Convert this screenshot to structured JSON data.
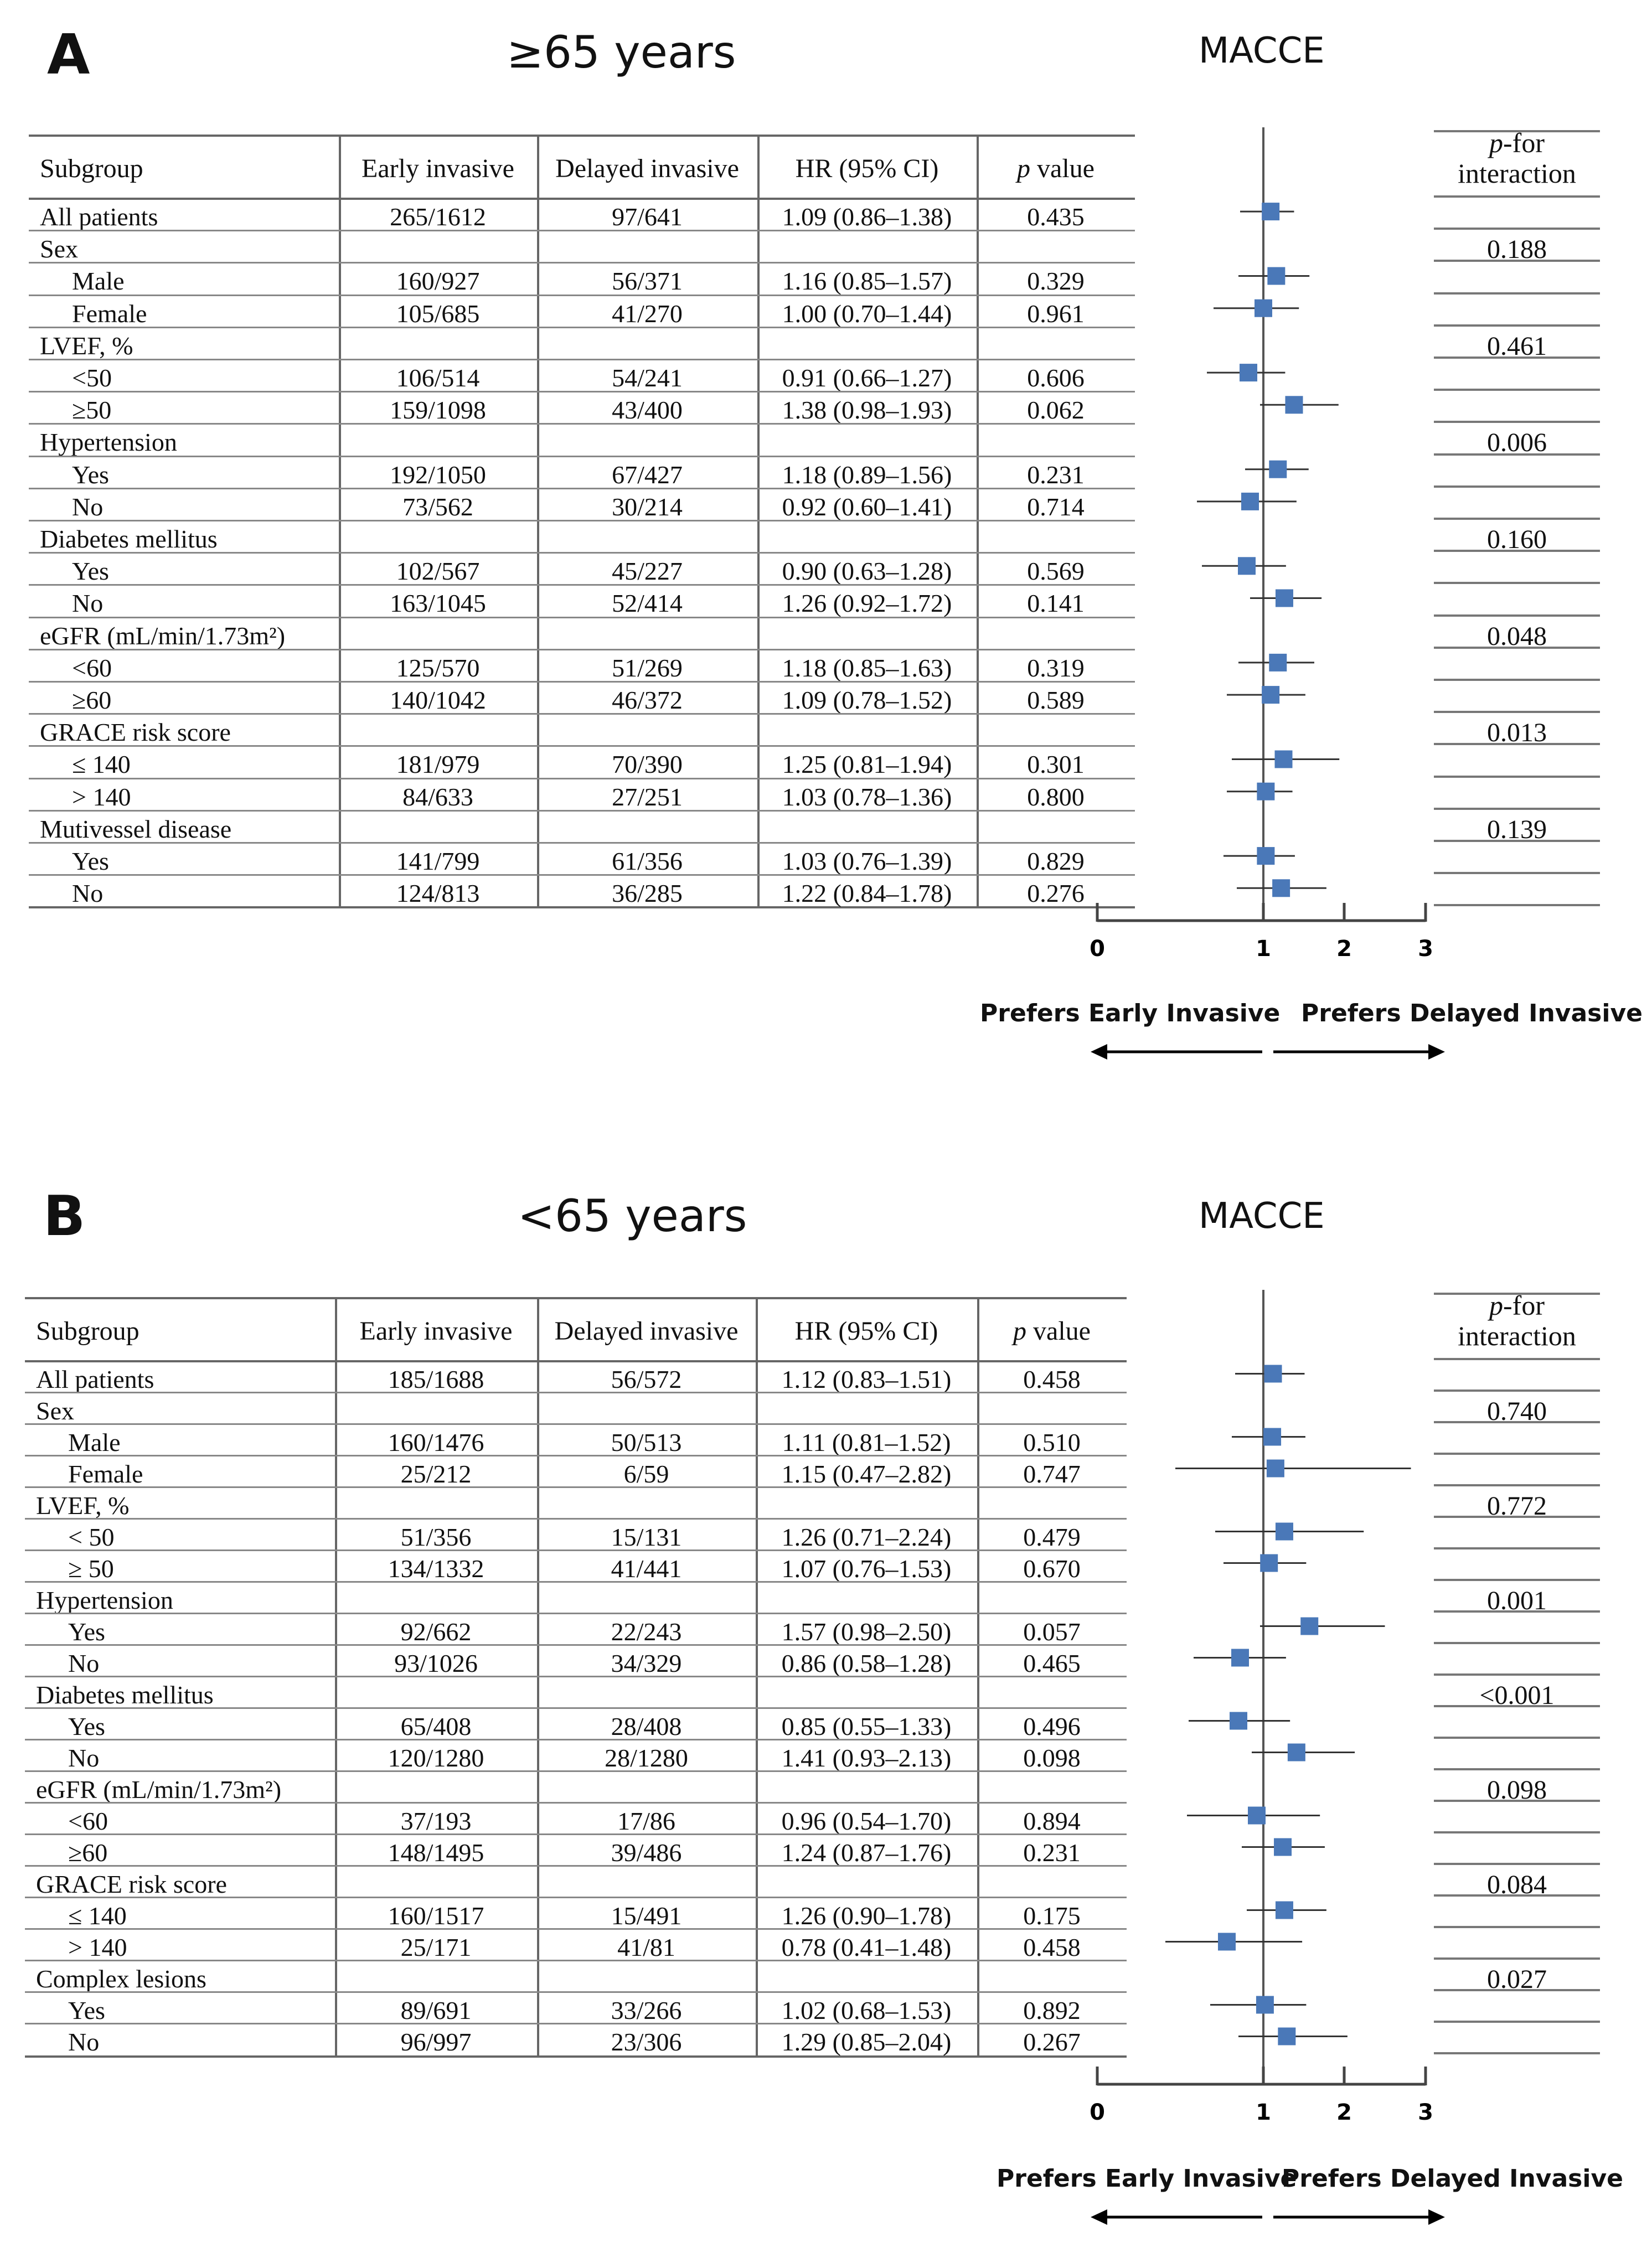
{
  "panels": [
    {
      "letter": "A",
      "title": "≥65 years",
      "outcome": "MACCE",
      "headers": {
        "subgroup": "Subgroup",
        "early": "Early invasive",
        "delayed": "Delayed invasive",
        "hr": "HR (95% CI)",
        "p_italic": "p",
        "p_rest": " value",
        "pint_italic": "p",
        "pint_rest": "-for",
        "pint_line2": "interaction"
      },
      "rows": [
        {
          "label": "All patients",
          "indent": false,
          "early": "265/1612",
          "delayed": "97/641",
          "hr": "1.09 (0.86–1.38)",
          "p": "0.435"
        },
        {
          "label": "Sex",
          "indent": false,
          "pint": "0.188"
        },
        {
          "label": "Male",
          "indent": true,
          "early": "160/927",
          "delayed": "56/371",
          "hr": "1.16 (0.85–1.57)",
          "p": "0.329"
        },
        {
          "label": "Female",
          "indent": true,
          "early": "105/685",
          "delayed": "41/270",
          "hr": "1.00 (0.70–1.44)",
          "p": "0.961"
        },
        {
          "label": "LVEF, %",
          "indent": false,
          "pint": "0.461"
        },
        {
          "label": "<50",
          "indent": true,
          "early": "106/514",
          "delayed": "54/241",
          "hr": "0.91 (0.66–1.27)",
          "p": "0.606"
        },
        {
          "label": "≥50",
          "indent": true,
          "early": "159/1098",
          "delayed": "43/400",
          "hr": "1.38 (0.98–1.93)",
          "p": "0.062"
        },
        {
          "label": "Hypertension",
          "indent": false,
          "pint": "0.006"
        },
        {
          "label": "Yes",
          "indent": true,
          "early": "192/1050",
          "delayed": "67/427",
          "hr": "1.18 (0.89–1.56)",
          "p": "0.231"
        },
        {
          "label": "No",
          "indent": true,
          "early": "73/562",
          "delayed": "30/214",
          "hr": "0.92 (0.60–1.41)",
          "p": "0.714"
        },
        {
          "label": "Diabetes mellitus",
          "indent": false,
          "pint": "0.160"
        },
        {
          "label": "Yes",
          "indent": true,
          "early": "102/567",
          "delayed": "45/227",
          "hr": "0.90 (0.63–1.28)",
          "p": "0.569"
        },
        {
          "label": "No",
          "indent": true,
          "early": "163/1045",
          "delayed": "52/414",
          "hr": "1.26 (0.92–1.72)",
          "p": "0.141"
        },
        {
          "label": "eGFR (mL/min/1.73m²)",
          "indent": false,
          "pint": "0.048"
        },
        {
          "label": "<60",
          "indent": true,
          "early": "125/570",
          "delayed": "51/269",
          "hr": "1.18 (0.85–1.63)",
          "p": "0.319"
        },
        {
          "label": "≥60",
          "indent": true,
          "early": "140/1042",
          "delayed": "46/372",
          "hr": "1.09 (0.78–1.52)",
          "p": "0.589"
        },
        {
          "label": "GRACE risk score",
          "indent": false,
          "pint": "0.013"
        },
        {
          "label": "≤ 140",
          "indent": true,
          "early": "181/979",
          "delayed": "70/390",
          "hr": "1.25 (0.81–1.94)",
          "p": "0.301"
        },
        {
          "label": "> 140",
          "indent": true,
          "early": "84/633",
          "delayed": "27/251",
          "hr": "1.03 (0.78–1.36)",
          "p": "0.800"
        },
        {
          "label": "Mutivessel disease",
          "indent": false,
          "pint": "0.139"
        },
        {
          "label": "Yes",
          "indent": true,
          "early": "141/799",
          "delayed": "61/356",
          "hr": "1.03 (0.76–1.39)",
          "p": "0.829"
        },
        {
          "label": "No",
          "indent": true,
          "early": "124/813",
          "delayed": "36/285",
          "hr": "1.22 (0.84–1.78)",
          "p": "0.276"
        }
      ],
      "axis": {
        "ticks": [
          "0",
          "1",
          "2",
          "3"
        ],
        "left_label": "Prefers Early Invasive",
        "right_label": "Prefers Delayed Invasive"
      }
    },
    {
      "letter": "B",
      "title": "<65 years",
      "outcome": "MACCE",
      "headers": {
        "subgroup": "Subgroup",
        "early": "Early invasive",
        "delayed": "Delayed invasive",
        "hr": "HR (95% CI)",
        "p_italic": "p",
        "p_rest": " value",
        "pint_italic": "p",
        "pint_rest": "-for",
        "pint_line2": "interaction"
      },
      "rows": [
        {
          "label": "All patients",
          "indent": false,
          "early": "185/1688",
          "delayed": "56/572",
          "hr": "1.12 (0.83–1.51)",
          "p": "0.458"
        },
        {
          "label": "Sex",
          "indent": false,
          "pint": "0.740"
        },
        {
          "label": "Male",
          "indent": true,
          "early": "160/1476",
          "delayed": "50/513",
          "hr": "1.11 (0.81–1.52)",
          "p": "0.510"
        },
        {
          "label": "Female",
          "indent": true,
          "early": "25/212",
          "delayed": "6/59",
          "hr": "1.15 (0.47–2.82)",
          "p": "0.747"
        },
        {
          "label": "LVEF, %",
          "indent": false,
          "pint": "0.772"
        },
        {
          "label": "< 50",
          "indent": true,
          "early": "51/356",
          "delayed": "15/131",
          "hr": "1.26 (0.71–2.24)",
          "p": "0.479"
        },
        {
          "label": "≥ 50",
          "indent": true,
          "early": "134/1332",
          "delayed": "41/441",
          "hr": "1.07 (0.76–1.53)",
          "p": "0.670"
        },
        {
          "label": "Hypertension",
          "indent": false,
          "pint": "0.001"
        },
        {
          "label": "Yes",
          "indent": true,
          "early": "92/662",
          "delayed": "22/243",
          "hr": "1.57 (0.98–2.50)",
          "p": "0.057"
        },
        {
          "label": "No",
          "indent": true,
          "early": "93/1026",
          "delayed": "34/329",
          "hr": "0.86 (0.58–1.28)",
          "p": "0.465"
        },
        {
          "label": "Diabetes mellitus",
          "indent": false,
          "pint": "<0.001"
        },
        {
          "label": "Yes",
          "indent": true,
          "early": "65/408",
          "delayed": "28/408",
          "hr": "0.85 (0.55–1.33)",
          "p": "0.496"
        },
        {
          "label": "No",
          "indent": true,
          "early": "120/1280",
          "delayed": "28/1280",
          "hr": "1.41 (0.93–2.13)",
          "p": "0.098"
        },
        {
          "label": "eGFR (mL/min/1.73m²)",
          "indent": false,
          "pint": "0.098"
        },
        {
          "label": "<60",
          "indent": true,
          "early": "37/193",
          "delayed": "17/86",
          "hr": "0.96 (0.54–1.70)",
          "p": "0.894"
        },
        {
          "label": "≥60",
          "indent": true,
          "early": "148/1495",
          "delayed": "39/486",
          "hr": "1.24 (0.87–1.76)",
          "p": "0.231"
        },
        {
          "label": "GRACE risk score",
          "indent": false,
          "pint": "0.084"
        },
        {
          "label": "≤ 140",
          "indent": true,
          "early": "160/1517",
          "delayed": "15/491",
          "hr": "1.26 (0.90–1.78)",
          "p": "0.175"
        },
        {
          "label": "> 140",
          "indent": true,
          "early": "25/171",
          "delayed": "41/81",
          "hr": "0.78 (0.41–1.48)",
          "p": "0.458"
        },
        {
          "label": "Complex lesions",
          "indent": false,
          "pint": "0.027"
        },
        {
          "label": "Yes",
          "indent": true,
          "early": "89/691",
          "delayed": "33/266",
          "hr": "1.02 (0.68–1.53)",
          "p": "0.892"
        },
        {
          "label": "No",
          "indent": true,
          "early": "96/997",
          "delayed": "23/306",
          "hr": "1.29 (0.85–2.04)",
          "p": "0.267"
        }
      ],
      "axis": {
        "ticks": [
          "0",
          "1",
          "2",
          "3"
        ],
        "left_label": "Prefers Early Invasive",
        "right_label": "Prefers Delayed Invasive"
      }
    }
  ],
  "chart_data": [
    {
      "type": "forest",
      "title": "≥65 years — MACCE",
      "xlim": [
        0,
        3
      ],
      "xticks": [
        0,
        1,
        2,
        3
      ],
      "reference_line": 1,
      "series": [
        {
          "name": "All patients",
          "hr": 1.09,
          "lo": 0.86,
          "hi": 1.38
        },
        {
          "name": "Male",
          "hr": 1.16,
          "lo": 0.85,
          "hi": 1.57
        },
        {
          "name": "Female",
          "hr": 1.0,
          "lo": 0.7,
          "hi": 1.44
        },
        {
          "name": "LVEF <50",
          "hr": 0.91,
          "lo": 0.66,
          "hi": 1.27
        },
        {
          "name": "LVEF ≥50",
          "hr": 1.38,
          "lo": 0.98,
          "hi": 1.93
        },
        {
          "name": "Hypertension Yes",
          "hr": 1.18,
          "lo": 0.89,
          "hi": 1.56
        },
        {
          "name": "Hypertension No",
          "hr": 0.92,
          "lo": 0.6,
          "hi": 1.41
        },
        {
          "name": "Diabetes Yes",
          "hr": 0.9,
          "lo": 0.63,
          "hi": 1.28
        },
        {
          "name": "Diabetes No",
          "hr": 1.26,
          "lo": 0.92,
          "hi": 1.72
        },
        {
          "name": "eGFR <60",
          "hr": 1.18,
          "lo": 0.85,
          "hi": 1.63
        },
        {
          "name": "eGFR ≥60",
          "hr": 1.09,
          "lo": 0.78,
          "hi": 1.52
        },
        {
          "name": "GRACE ≤140",
          "hr": 1.25,
          "lo": 0.81,
          "hi": 1.94
        },
        {
          "name": "GRACE >140",
          "hr": 1.03,
          "lo": 0.78,
          "hi": 1.36
        },
        {
          "name": "Multivessel Yes",
          "hr": 1.03,
          "lo": 0.76,
          "hi": 1.39
        },
        {
          "name": "Multivessel No",
          "hr": 1.22,
          "lo": 0.84,
          "hi": 1.78
        }
      ]
    },
    {
      "type": "forest",
      "title": "<65 years — MACCE",
      "xlim": [
        0,
        3
      ],
      "xticks": [
        0,
        1,
        2,
        3
      ],
      "reference_line": 1,
      "series": [
        {
          "name": "All patients",
          "hr": 1.12,
          "lo": 0.83,
          "hi": 1.51
        },
        {
          "name": "Male",
          "hr": 1.11,
          "lo": 0.81,
          "hi": 1.52
        },
        {
          "name": "Female",
          "hr": 1.15,
          "lo": 0.47,
          "hi": 2.82
        },
        {
          "name": "LVEF <50",
          "hr": 1.26,
          "lo": 0.71,
          "hi": 2.24
        },
        {
          "name": "LVEF ≥50",
          "hr": 1.07,
          "lo": 0.76,
          "hi": 1.53
        },
        {
          "name": "Hypertension Yes",
          "hr": 1.57,
          "lo": 0.98,
          "hi": 2.5
        },
        {
          "name": "Hypertension No",
          "hr": 0.86,
          "lo": 0.58,
          "hi": 1.28
        },
        {
          "name": "Diabetes Yes",
          "hr": 0.85,
          "lo": 0.55,
          "hi": 1.33
        },
        {
          "name": "Diabetes No",
          "hr": 1.41,
          "lo": 0.93,
          "hi": 2.13
        },
        {
          "name": "eGFR <60",
          "hr": 0.96,
          "lo": 0.54,
          "hi": 1.7
        },
        {
          "name": "eGFR ≥60",
          "hr": 1.24,
          "lo": 0.87,
          "hi": 1.76
        },
        {
          "name": "GRACE ≤140",
          "hr": 1.26,
          "lo": 0.9,
          "hi": 1.78
        },
        {
          "name": "GRACE >140",
          "hr": 0.78,
          "lo": 0.41,
          "hi": 1.48
        },
        {
          "name": "Complex lesions Yes",
          "hr": 1.02,
          "lo": 0.68,
          "hi": 1.53
        },
        {
          "name": "Complex lesions No",
          "hr": 1.29,
          "lo": 0.85,
          "hi": 2.04
        }
      ]
    }
  ],
  "colors": {
    "marker": "#4a78b8",
    "line": "#333333",
    "rule": "#666666"
  }
}
